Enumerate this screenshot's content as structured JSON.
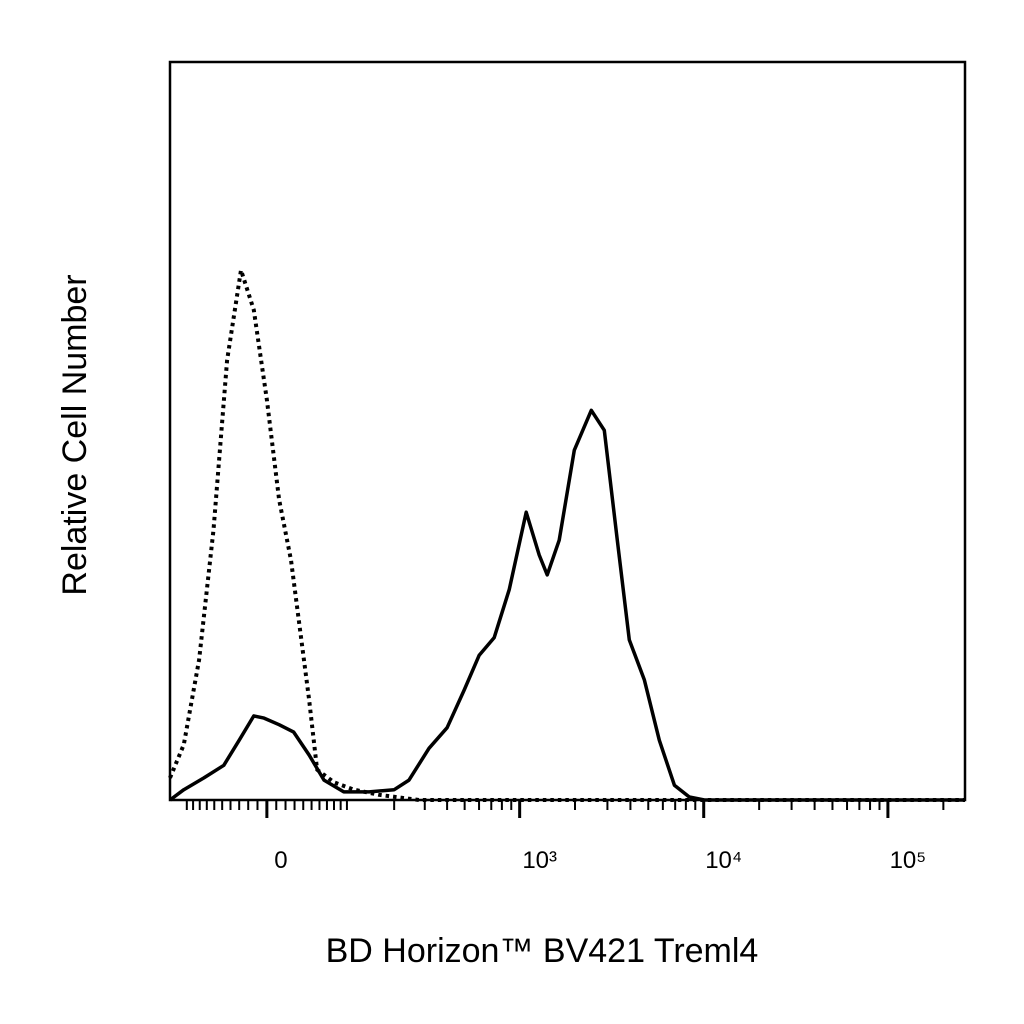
{
  "chart_data": {
    "type": "line",
    "x_label": "BD Horizon™ BV421 Treml4",
    "y_label": "Relative Cell Number",
    "xscale": "arcsinh",
    "xscale_cofactor": 85,
    "xlim": [
      -130,
      262144
    ],
    "ylim": [
      0,
      100
    ],
    "xticks": [
      0,
      {
        "value": 1000,
        "label": "10³"
      },
      {
        "value": 10000,
        "label": "10⁴"
      },
      {
        "value": 100000,
        "label": "10⁵"
      }
    ],
    "xminor_ticks": [
      -100,
      -90,
      -80,
      -70,
      -60,
      -50,
      -40,
      -30,
      -20,
      -10,
      10,
      20,
      30,
      40,
      50,
      60,
      70,
      80,
      90,
      100,
      200,
      300,
      400,
      500,
      600,
      700,
      800,
      900,
      2000,
      3000,
      4000,
      5000,
      6000,
      7000,
      8000,
      9000,
      20000,
      30000,
      40000,
      50000,
      60000,
      70000,
      80000,
      90000,
      200000
    ],
    "series": [
      {
        "color": "#000000",
        "line_style": "solid",
        "x": [
          -130,
          -105,
          -74,
          -48,
          -30,
          -14,
          -3,
          13,
          29,
          47,
          66,
          95,
          141,
          200,
          244,
          317,
          400,
          497,
          600,
          726,
          877,
          1085,
          1278,
          1412,
          1641,
          1982,
          2452,
          2884,
          3394,
          3944,
          4758,
          5742,
          6928,
          8356,
          10080,
          262144
        ],
        "values": [
          0,
          1.4,
          3.0,
          4.7,
          8.1,
          11.4,
          11.1,
          10.2,
          9.2,
          6.1,
          2.7,
          1.1,
          1.1,
          1.4,
          2.7,
          7.0,
          9.8,
          14.9,
          19.6,
          22.0,
          28.5,
          39.0,
          33.2,
          30.5,
          35.2,
          47.4,
          52.8,
          50.1,
          35.2,
          21.7,
          16.3,
          8.1,
          2.0,
          0.4,
          0,
          0
        ]
      },
      {
        "color": "#000000",
        "line_style": "dotted",
        "x": [
          -130,
          -105,
          -81,
          -61,
          -44,
          -28,
          -14,
          0,
          13,
          26,
          47,
          57,
          80,
          112,
          162,
          278,
          262144
        ],
        "values": [
          3.0,
          7.5,
          19.0,
          36.6,
          59.6,
          71.8,
          66.4,
          54.2,
          40.7,
          32.5,
          13.6,
          4.1,
          2.4,
          1.4,
          0.7,
          0,
          0
        ]
      }
    ]
  }
}
